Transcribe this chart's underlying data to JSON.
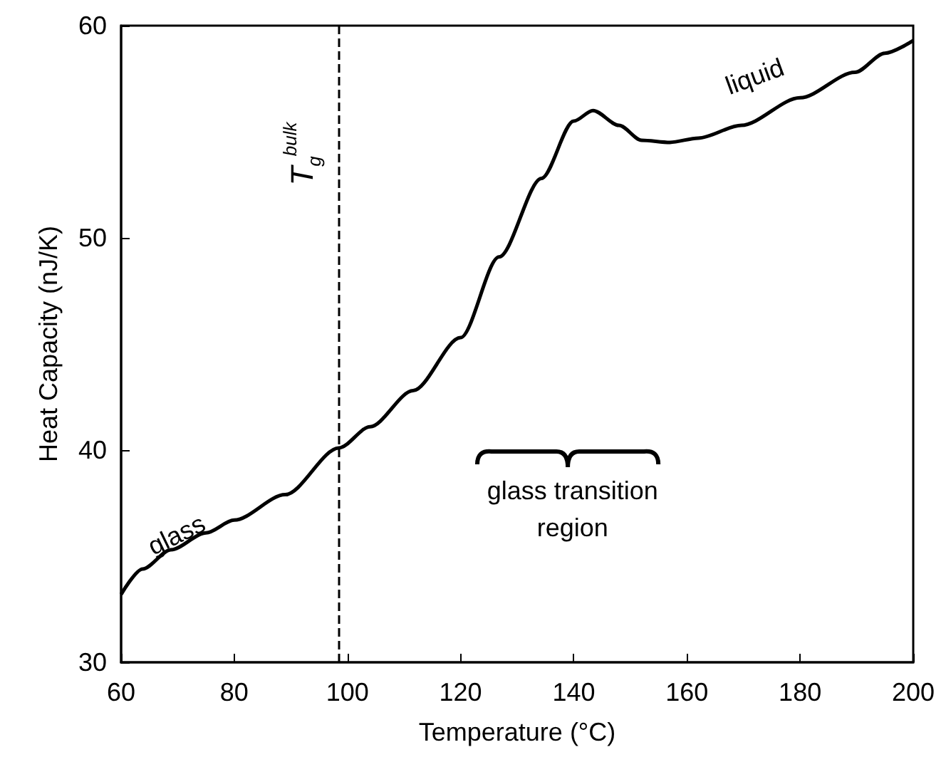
{
  "chart_data": {
    "type": "line",
    "xlabel": "Temperature (°C)",
    "ylabel": "Heat Capacity (nJ/K)",
    "x": [
      60,
      63.8,
      68.8,
      75,
      80,
      89,
      98.5,
      104,
      111.6,
      120,
      126.8,
      134.3,
      140,
      143.4,
      148,
      152,
      157,
      162,
      169.6,
      180,
      189.7,
      195,
      200
    ],
    "series": [
      {
        "color": "#000000",
        "values": [
          33.2,
          34.4,
          35.3,
          36.1,
          36.7,
          37.9,
          40.1,
          41.1,
          42.8,
          45.3,
          49.1,
          52.8,
          55.5,
          56.0,
          55.3,
          54.6,
          54.5,
          54.7,
          55.3,
          56.6,
          57.8,
          58.7,
          59.3
        ]
      }
    ],
    "xlim": [
      60,
      200
    ],
    "xticks": [
      60,
      80,
      100,
      120,
      140,
      160,
      180,
      200
    ],
    "ylim": [
      30,
      60
    ],
    "yticks": [
      30,
      40,
      50,
      60
    ],
    "grid": false,
    "marker": "none",
    "line_style": "solid",
    "ref_lines": [
      {
        "axis": "x",
        "value": 98.5,
        "label": "T$_{g}$$^{bulk}$",
        "line_style": "dashed",
        "color": "#000000"
      }
    ],
    "annotations": [
      "glass",
      "liquid",
      "glass transition region"
    ]
  }
}
